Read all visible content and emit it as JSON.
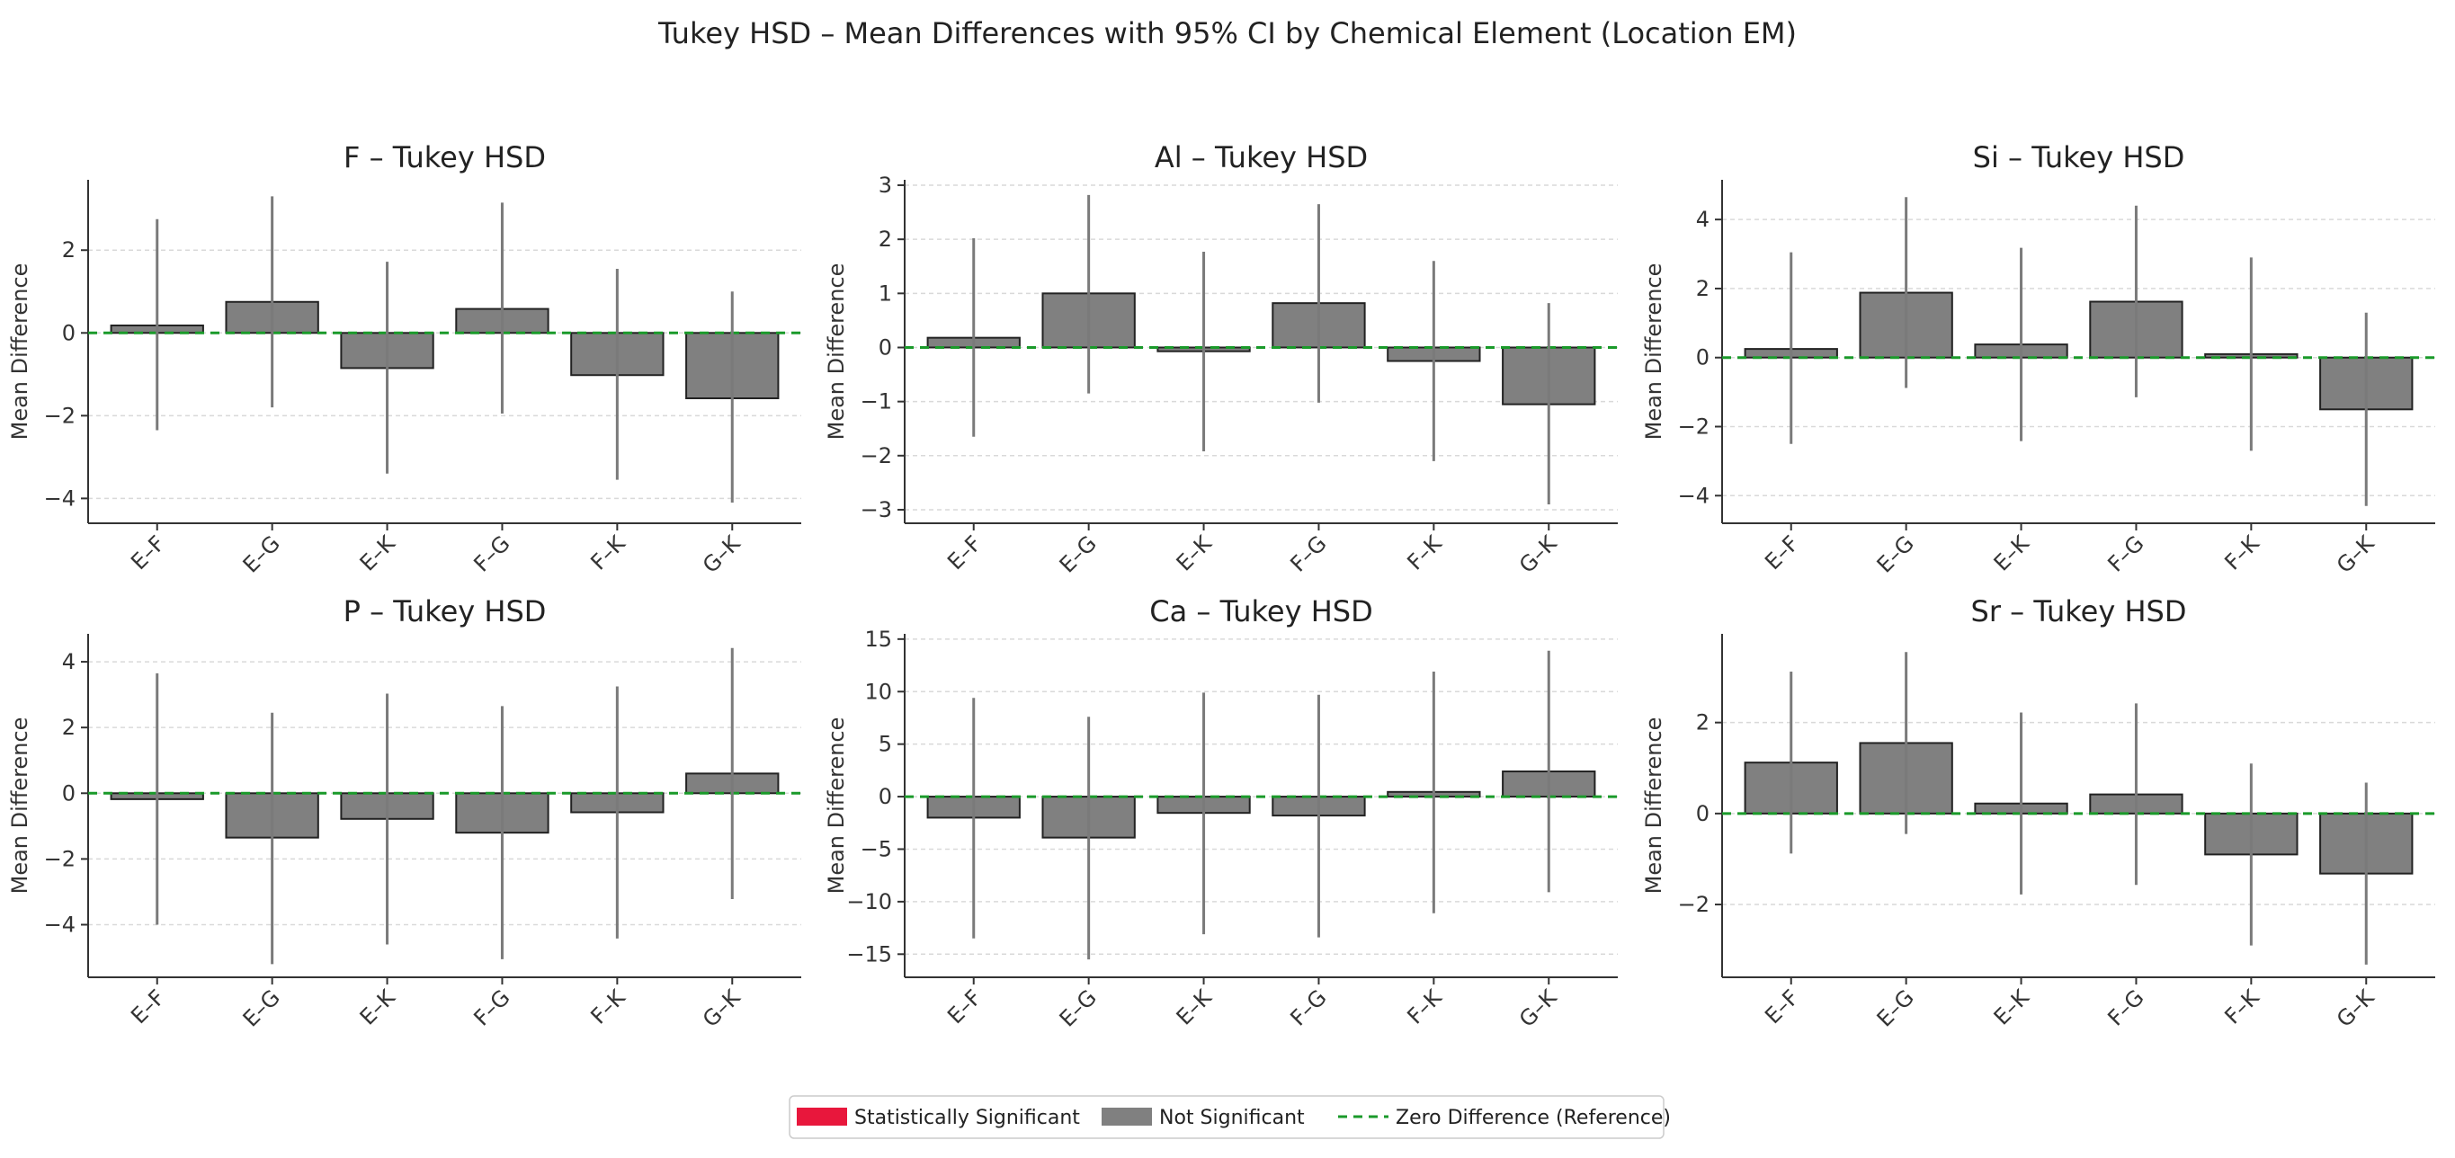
{
  "figure_title": "Tukey HSD – Mean Differences with 95% CI by Chemical Element (Location EM)",
  "legend": {
    "items": [
      {
        "label": "Statistically Significant",
        "color": "#e8173c",
        "type": "patch"
      },
      {
        "label": "Not Significant",
        "color": "#808080",
        "type": "patch"
      },
      {
        "label": "Zero Difference (Reference)",
        "color": "#1a9a2a",
        "type": "line"
      }
    ]
  },
  "chart_data": [
    {
      "type": "bar",
      "title": "F – Tukey HSD",
      "ylabel": "Mean Difference",
      "categories": [
        "E–F",
        "E–G",
        "E–K",
        "F–G",
        "F–K",
        "G–K"
      ],
      "values": [
        0.18,
        0.75,
        -0.85,
        0.58,
        -1.02,
        -1.58
      ],
      "ci_lower": [
        -2.35,
        -1.8,
        -3.4,
        -1.95,
        -3.55,
        -4.1
      ],
      "ci_upper": [
        2.75,
        3.3,
        1.72,
        3.15,
        1.55,
        1.0
      ],
      "significant": [
        false,
        false,
        false,
        false,
        false,
        false
      ],
      "ylim": [
        -4.6,
        3.7
      ],
      "yticks": [
        -4,
        -2,
        0,
        2
      ]
    },
    {
      "type": "bar",
      "title": "Al – Tukey HSD",
      "ylabel": "Mean Difference",
      "categories": [
        "E–F",
        "E–G",
        "E–K",
        "F–G",
        "F–K",
        "G–K"
      ],
      "values": [
        0.18,
        1.0,
        -0.07,
        0.82,
        -0.25,
        -1.05
      ],
      "ci_lower": [
        -1.65,
        -0.85,
        -1.92,
        -1.02,
        -2.1,
        -2.9
      ],
      "ci_upper": [
        2.02,
        2.82,
        1.77,
        2.65,
        1.6,
        0.82
      ],
      "significant": [
        false,
        false,
        false,
        false,
        false,
        false
      ],
      "ylim": [
        -3.25,
        3.1
      ],
      "yticks": [
        -3,
        -2,
        -1,
        0,
        1,
        2,
        3
      ]
    },
    {
      "type": "bar",
      "title": "Si – Tukey HSD",
      "ylabel": "Mean Difference",
      "categories": [
        "E–F",
        "E–G",
        "E–K",
        "F–G",
        "F–K",
        "G–K"
      ],
      "values": [
        0.25,
        1.88,
        0.38,
        1.62,
        0.1,
        -1.5
      ],
      "ci_lower": [
        -2.5,
        -0.88,
        -2.42,
        -1.15,
        -2.7,
        -4.3
      ],
      "ci_upper": [
        3.05,
        4.65,
        3.18,
        4.4,
        2.9,
        1.3
      ],
      "significant": [
        false,
        false,
        false,
        false,
        false,
        false
      ],
      "ylim": [
        -4.8,
        5.15
      ],
      "yticks": [
        -4,
        -2,
        0,
        2,
        4
      ]
    },
    {
      "type": "bar",
      "title": "P – Tukey HSD",
      "ylabel": "Mean Difference",
      "categories": [
        "E–F",
        "E–G",
        "E–K",
        "F–G",
        "F–K",
        "G–K"
      ],
      "values": [
        -0.18,
        -1.35,
        -0.78,
        -1.2,
        -0.58,
        0.6
      ],
      "ci_lower": [
        -4.0,
        -5.2,
        -4.6,
        -5.05,
        -4.42,
        -3.22
      ],
      "ci_upper": [
        3.65,
        2.45,
        3.03,
        2.65,
        3.25,
        4.42
      ],
      "significant": [
        false,
        false,
        false,
        false,
        false,
        false
      ],
      "ylim": [
        -5.6,
        4.85
      ],
      "yticks": [
        -4,
        -2,
        0,
        2,
        4
      ]
    },
    {
      "type": "bar",
      "title": "Ca – Tukey HSD",
      "ylabel": "Mean Difference",
      "categories": [
        "E–F",
        "E–G",
        "E–K",
        "F–G",
        "F–K",
        "G–K"
      ],
      "values": [
        -2.0,
        -3.9,
        -1.55,
        -1.8,
        0.45,
        2.4
      ],
      "ci_lower": [
        -13.5,
        -15.5,
        -13.1,
        -13.4,
        -11.1,
        -9.1
      ],
      "ci_upper": [
        9.4,
        7.6,
        9.9,
        9.7,
        11.9,
        13.9
      ],
      "significant": [
        false,
        false,
        false,
        false,
        false,
        false
      ],
      "ylim": [
        -17.2,
        15.5
      ],
      "yticks": [
        -15,
        -10,
        -5,
        0,
        5,
        10,
        15
      ]
    },
    {
      "type": "bar",
      "title": "Sr – Tukey HSD",
      "ylabel": "Mean Difference",
      "categories": [
        "E–F",
        "E–G",
        "E–K",
        "F–G",
        "F–K",
        "G–K"
      ],
      "values": [
        1.12,
        1.55,
        0.22,
        0.42,
        -0.9,
        -1.32
      ],
      "ci_lower": [
        -0.88,
        -0.45,
        -1.78,
        -1.57,
        -2.9,
        -3.32
      ],
      "ci_upper": [
        3.12,
        3.55,
        2.22,
        2.42,
        1.1,
        0.68
      ],
      "significant": [
        false,
        false,
        false,
        false,
        false,
        false
      ],
      "ylim": [
        -3.6,
        3.95
      ],
      "yticks": [
        -2,
        0,
        2
      ]
    }
  ]
}
